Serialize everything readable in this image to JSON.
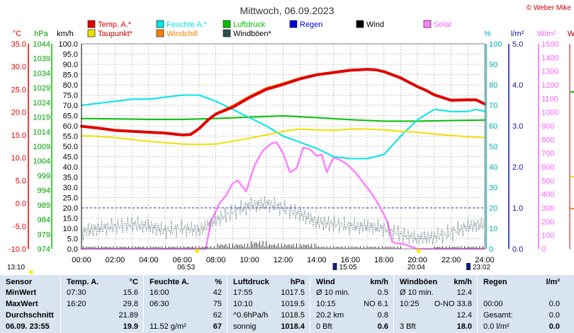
{
  "chart_data": {
    "type": "line",
    "title": "Mittwoch, 06.09.2023",
    "copyright": "© Weber Mike",
    "legend": [
      {
        "label": "Temp. A.*",
        "color": "#e00000"
      },
      {
        "label": "Feuchte A.*",
        "color": "#00e5e5"
      },
      {
        "label": "Luftdruck",
        "color": "#00c000"
      },
      {
        "label": "Regen",
        "color": "#0000e0"
      },
      {
        "label": "Wind",
        "color": "#000000"
      },
      {
        "label": "Solar",
        "color": "#ff80ff"
      },
      {
        "label": "Taupunkt*",
        "color": "#f0e000"
      },
      {
        "label": "Windchill",
        "color": "#ff8000"
      },
      {
        "label": "Windböen*",
        "color": "#305050"
      }
    ],
    "axis_units": {
      "temp": "°C",
      "pressure": "hPa",
      "wind": "km/h",
      "humidity": "%",
      "rain": "l/m²",
      "solar": "W/m²",
      "partial_right": "W"
    },
    "axes": {
      "temp_ticks": [
        "35.0",
        "30.0",
        "25.0",
        "20.0",
        "15.0",
        "10.0",
        "5.0",
        "0.0",
        "-5.0",
        "-10.0"
      ],
      "pressure_ticks": [
        "1044",
        "1039",
        "1034",
        "1029",
        "1024",
        "1019",
        "1014",
        "1009",
        "1004",
        "999",
        "994",
        "989",
        "984",
        "979",
        "974"
      ],
      "wind_ticks": [
        "100.0",
        "95.0",
        "90.0",
        "85.0",
        "80.0",
        "75.0",
        "70.0",
        "65.0",
        "60.0",
        "55.0",
        "50.0",
        "45.0",
        "40.0",
        "35.0",
        "30.0",
        "25.0",
        "20.0",
        "15.0",
        "10.0",
        "5.0",
        "0.0"
      ],
      "humidity_ticks": [
        "100",
        "90",
        "80",
        "70",
        "60",
        "50",
        "40",
        "30",
        "20",
        "10",
        "0"
      ],
      "rain_ticks": [
        "5.0",
        "4.0",
        "3.0",
        "2.0",
        "1.0",
        "0.0"
      ],
      "solar_ticks": [
        "1500",
        "1400",
        "1300",
        "1200",
        "1100",
        "1000",
        "900",
        "800",
        "700",
        "600",
        "500",
        "400",
        "300",
        "200",
        "100",
        "0"
      ],
      "x_ticks": [
        "00:00",
        "02:00",
        "04:00",
        "06:00",
        "08:00",
        "10:00",
        "12:00",
        "14:00",
        "16:00",
        "18:00",
        "20:00",
        "22:00",
        "24:00"
      ],
      "temp_range": [
        -10,
        35
      ],
      "wind_range": [
        0,
        100
      ],
      "humidity_range": [
        0,
        100
      ],
      "pressure_range": [
        974,
        1044
      ],
      "solar_range": [
        0,
        1500
      ],
      "rain_range": [
        0,
        5
      ],
      "x_range_hours": [
        0,
        24
      ],
      "grid": true
    },
    "time_markers": [
      {
        "label": "13:10",
        "hour": 0,
        "row": "low"
      },
      {
        "label": "06:53",
        "hour": 6.88,
        "row": "high",
        "kind": "sunrise"
      },
      {
        "label": "15:05",
        "hour": 15.08,
        "row": "high",
        "kind": "moon"
      },
      {
        "label": "20:04",
        "hour": 20.07,
        "row": "high",
        "kind": "sunset"
      },
      {
        "label": "23:02",
        "hour": 23.03,
        "row": "high",
        "kind": "moon"
      }
    ],
    "series": [
      {
        "name": "Temp. A.*",
        "axis": "temp",
        "color": "#e00000",
        "width": 4,
        "x": [
          0,
          1,
          2,
          3,
          4,
          5,
          6,
          6.5,
          7,
          7.5,
          8,
          9,
          10,
          11,
          12,
          13,
          14,
          15,
          16,
          16.5,
          17,
          17.5,
          18,
          19,
          20,
          20.5,
          21,
          22,
          23,
          23.5,
          24
        ],
        "y": [
          16.9,
          16.5,
          16.0,
          15.8,
          15.6,
          15.4,
          15.0,
          15.1,
          16.4,
          18.2,
          19.6,
          21.1,
          23.2,
          25.0,
          26.1,
          27.3,
          28.2,
          28.7,
          29.2,
          29.3,
          29.4,
          29.3,
          28.9,
          27.5,
          25.6,
          24.8,
          23.8,
          22.6,
          22.7,
          22.7,
          21.8
        ]
      },
      {
        "name": "Windchill",
        "axis": "temp",
        "color": "#ff8000",
        "width": 1.5,
        "x": [
          7.5,
          8,
          9,
          10,
          11,
          12,
          13,
          14,
          15,
          16,
          17,
          18,
          19,
          20,
          21,
          22,
          23,
          24
        ],
        "y": [
          18.3,
          19.8,
          21.5,
          23.6,
          25.4,
          26.4,
          27.6,
          28.4,
          28.9,
          29.4,
          29.5,
          29.0,
          27.7,
          25.8,
          24.0,
          22.8,
          22.9,
          22.0
        ]
      },
      {
        "name": "Taupunkt*",
        "axis": "temp",
        "color": "#f0e000",
        "width": 2,
        "x": [
          0,
          1,
          2,
          3,
          4,
          5,
          6,
          7,
          8,
          9,
          10,
          11,
          12,
          13,
          14,
          15,
          16,
          17,
          18,
          19,
          20,
          21,
          22,
          23,
          24
        ],
        "y": [
          14.8,
          14.7,
          14.4,
          14.0,
          13.6,
          13.3,
          13.0,
          12.9,
          13.0,
          13.6,
          14.3,
          15.0,
          15.8,
          16.3,
          16.1,
          16.0,
          16.3,
          16.3,
          16.1,
          15.8,
          15.6,
          15.2,
          14.9,
          14.6,
          14.4
        ]
      },
      {
        "name": "Luftdruck",
        "axis": "pressure",
        "color": "#00c000",
        "width": 2,
        "x": [
          0,
          2,
          4,
          6,
          8,
          10,
          12,
          14,
          16,
          18,
          20,
          22,
          24
        ],
        "y": [
          1018.5,
          1018.4,
          1018.2,
          1018.2,
          1018.5,
          1019.0,
          1019.4,
          1018.8,
          1018.1,
          1017.6,
          1017.6,
          1017.8,
          1018.0
        ]
      },
      {
        "name": "Feuchte A.*",
        "axis": "humidity",
        "color": "#00e5e5",
        "width": 2,
        "x": [
          0,
          1,
          2,
          3,
          4,
          5,
          6,
          7,
          8,
          9,
          10,
          11,
          12,
          13,
          14,
          15,
          16,
          17,
          18,
          19,
          20,
          21,
          22,
          23,
          23.5,
          24
        ],
        "y": [
          70,
          71,
          72,
          73,
          73,
          74,
          75,
          75,
          72,
          68,
          64,
          60,
          55,
          52,
          49,
          45,
          44,
          44,
          46,
          55,
          63,
          68,
          67,
          67,
          68,
          67
        ]
      },
      {
        "name": "Solar",
        "axis": "solar",
        "color": "#ff80ff",
        "width": 2.5,
        "x": [
          0,
          7.4,
          7.7,
          8.2,
          8.6,
          9.0,
          9.3,
          9.8,
          10.3,
          10.8,
          11.3,
          11.6,
          12.0,
          12.4,
          12.8,
          13.2,
          13.6,
          14.0,
          14.3,
          14.6,
          15.0,
          15.4,
          15.8,
          16.3,
          16.8,
          17.3,
          17.8,
          18.2,
          18.5,
          18.8,
          19.2,
          19.5,
          20.0,
          24
        ],
        "y": [
          0,
          0,
          200,
          330,
          390,
          480,
          500,
          420,
          610,
          720,
          770,
          780,
          700,
          560,
          590,
          740,
          730,
          680,
          690,
          560,
          670,
          650,
          620,
          560,
          480,
          400,
          300,
          200,
          50,
          40,
          35,
          20,
          0,
          0
        ]
      },
      {
        "name": "Windböen*",
        "axis": "wind",
        "color": "#305050",
        "width": 0.8,
        "style": "dotted",
        "x": [
          0,
          1,
          2,
          3,
          4,
          5,
          6,
          7,
          8,
          9,
          10,
          11,
          12,
          13,
          14,
          15,
          16,
          17,
          18,
          19,
          20,
          21,
          22,
          23,
          24
        ],
        "y": [
          8,
          10,
          11,
          12,
          11,
          9,
          10,
          9,
          14,
          18,
          21,
          22,
          20,
          17,
          13,
          12,
          11,
          11,
          10,
          7,
          5,
          6,
          8,
          11,
          12
        ]
      },
      {
        "name": "Wind",
        "axis": "wind",
        "color": "#000000",
        "width": 1,
        "x": [
          0,
          1,
          2,
          3,
          4,
          5,
          6,
          7,
          8,
          9,
          10,
          11,
          12,
          13,
          14,
          15,
          16,
          17,
          18,
          19,
          20,
          21,
          22,
          23,
          24
        ],
        "y": [
          1,
          1,
          1,
          1,
          1,
          1,
          1,
          1,
          2,
          2,
          3,
          2,
          2,
          2,
          1,
          1,
          1,
          1,
          1,
          0,
          0,
          1,
          1,
          1,
          1
        ]
      }
    ],
    "reference_lines": [
      {
        "axis": "rain",
        "y": 1.0,
        "color": "#2020c0",
        "style": "dashed"
      }
    ]
  },
  "stats": {
    "sensor_label": "Sensor",
    "row_labels": [
      "MinWert",
      "MaxWert",
      "Durchschnitt",
      "06.09.  23:55"
    ],
    "blocks": [
      {
        "title": "Temp. A.",
        "unit": "°C",
        "rows": [
          [
            "07:30",
            "15.6"
          ],
          [
            "16:20",
            "29.8"
          ],
          [
            "",
            "21.89"
          ],
          [
            "",
            "19.9"
          ]
        ]
      },
      {
        "title": "Feuchte A.",
        "unit": "%",
        "rows": [
          [
            "16:00",
            "42"
          ],
          [
            "06:30",
            "75"
          ],
          [
            "",
            "62"
          ],
          [
            "11.52 g/m²",
            "67"
          ]
        ]
      },
      {
        "title": "Luftdruck",
        "unit": "hPa",
        "rows": [
          [
            "17:55",
            "1017.5"
          ],
          [
            "10:10",
            "1019.5"
          ],
          [
            "^0.6hPa/h",
            "1018.5"
          ],
          [
            "sonnig",
            "1018.4"
          ]
        ]
      },
      {
        "title": "Wind",
        "unit": "km/h",
        "rows": [
          [
            "Ø 10 min.",
            "0.5"
          ],
          [
            "10:15",
            "NO 6.1"
          ],
          [
            "20.2 km",
            "0.8"
          ],
          [
            "0 Bft",
            "0.6"
          ]
        ]
      },
      {
        "title": "Windböen",
        "unit": "km/h",
        "rows": [
          [
            "Ø 10 min.",
            "12.4"
          ],
          [
            "10:25",
            "O-NO 33.8"
          ],
          [
            "",
            "12.4"
          ],
          [
            "3 Bft",
            "18.0"
          ]
        ]
      },
      {
        "title": "Regen",
        "unit": "l/m²",
        "rows": [
          [
            "",
            ""
          ],
          [
            "00:00",
            "0.0"
          ],
          [
            "Gesamt:",
            "0.0"
          ],
          [
            "0.0 l/m²",
            "0.0"
          ]
        ]
      }
    ]
  }
}
